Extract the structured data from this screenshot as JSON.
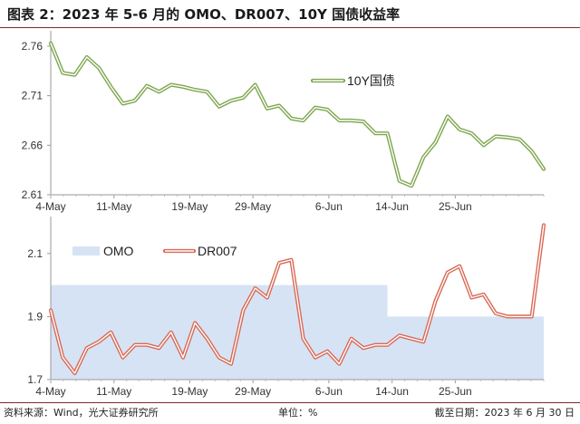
{
  "header": {
    "title": "图表 2：2023 年 5-6 月的 OMO、DR007、10Y 国债收益率"
  },
  "footer": {
    "source": "资料来源：Wind，光大证券研究所",
    "unit": "单位：%",
    "date": "截至日期：2023 年 6 月 30 日"
  },
  "chart_data": [
    {
      "type": "line",
      "title": "",
      "ylim": [
        2.61,
        2.77
      ],
      "yticks": [
        2.61,
        2.66,
        2.71,
        2.76
      ],
      "xlim": [
        0,
        39
      ],
      "x_tick_labels": [
        {
          "label": "4-May",
          "index": 0
        },
        {
          "label": "11-May",
          "index": 5
        },
        {
          "label": "19-May",
          "index": 11
        },
        {
          "label": "29-May",
          "index": 16
        },
        {
          "label": "6-Jun",
          "index": 22
        },
        {
          "label": "14-Jun",
          "index": 27
        },
        {
          "label": "25-Jun",
          "index": 32
        }
      ],
      "grid": false,
      "legend": "upper-middle",
      "series": [
        {
          "name": "10Y国债",
          "color": "#7ea64f",
          "values": [
            2.763,
            2.733,
            2.731,
            2.749,
            2.738,
            2.719,
            2.702,
            2.705,
            2.72,
            2.714,
            2.721,
            2.719,
            2.716,
            2.714,
            2.699,
            2.705,
            2.708,
            2.721,
            2.697,
            2.7,
            2.687,
            2.685,
            2.698,
            2.696,
            2.685,
            2.685,
            2.684,
            2.672,
            2.672,
            2.624,
            2.619,
            2.648,
            2.663,
            2.689,
            2.676,
            2.672,
            2.66,
            2.669,
            2.668,
            2.666,
            2.654,
            2.636
          ]
        }
      ]
    },
    {
      "type": "line",
      "title": "",
      "ylim": [
        1.7,
        2.2
      ],
      "yticks": [
        1.7,
        1.9,
        2.1
      ],
      "xlim": [
        0,
        39
      ],
      "x_tick_labels": [
        {
          "label": "4-May",
          "index": 0
        },
        {
          "label": "11-May",
          "index": 5
        },
        {
          "label": "19-May",
          "index": 11
        },
        {
          "label": "29-May",
          "index": 16
        },
        {
          "label": "6-Jun",
          "index": 22
        },
        {
          "label": "14-Jun",
          "index": 27
        },
        {
          "label": "25-Jun",
          "index": 32
        }
      ],
      "grid": false,
      "legend": "top-left",
      "series": [
        {
          "name": "OMO",
          "kind": "area",
          "color": "#d6e3f5",
          "values": [
            2.0,
            2.0,
            2.0,
            2.0,
            2.0,
            2.0,
            2.0,
            2.0,
            2.0,
            2.0,
            2.0,
            2.0,
            2.0,
            2.0,
            2.0,
            2.0,
            2.0,
            2.0,
            2.0,
            2.0,
            2.0,
            2.0,
            2.0,
            2.0,
            2.0,
            2.0,
            2.0,
            2.0,
            1.9,
            1.9,
            1.9,
            1.9,
            1.9,
            1.9,
            1.9,
            1.9,
            1.9,
            1.9,
            1.9,
            1.9,
            1.9,
            1.9
          ]
        },
        {
          "name": "DR007",
          "kind": "line",
          "color": "#d96a55",
          "values": [
            1.92,
            1.77,
            1.72,
            1.8,
            1.82,
            1.85,
            1.77,
            1.81,
            1.81,
            1.8,
            1.85,
            1.77,
            1.88,
            1.83,
            1.77,
            1.75,
            1.92,
            1.99,
            1.96,
            2.07,
            2.08,
            1.83,
            1.77,
            1.79,
            1.75,
            1.83,
            1.8,
            1.81,
            1.81,
            1.84,
            1.83,
            1.82,
            1.95,
            2.04,
            2.06,
            1.96,
            1.97,
            1.91,
            1.9,
            1.9,
            1.9,
            2.19
          ]
        }
      ]
    }
  ]
}
